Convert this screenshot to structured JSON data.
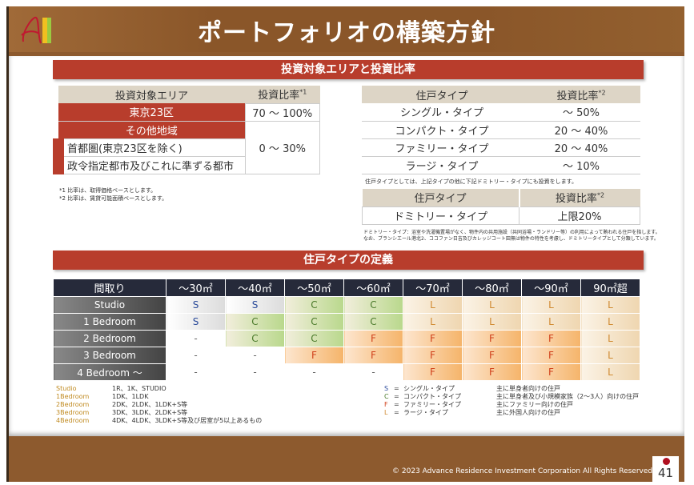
{
  "header": {
    "title": "ポートフォリオの構築方針",
    "logo_text": "A"
  },
  "section1": {
    "title": "投資対象エリアと投資比率"
  },
  "area_table": {
    "col_area": "投資対象エリア",
    "col_ratio": "投資比率",
    "col_ratio_note": "*1",
    "tokyo": "東京23区",
    "tokyo_ratio": "70 ～ 100%",
    "other": "その他地域",
    "metro": "首都圏(東京23区を除く)",
    "cities": "政令指定都市及びこれに準ずる都市",
    "other_ratio": "0 ～ 30%"
  },
  "footnotes": [
    "*1 比率は、取得価格ベースとします。",
    "*2 比率は、賃貸可能面積ベースとします。"
  ],
  "type_table": {
    "col_type": "住戸タイプ",
    "col_ratio": "投資比率",
    "col_ratio_note": "*2",
    "rows": [
      {
        "type": "シングル・タイプ",
        "ratio": "～ 50%"
      },
      {
        "type": "コンパクト・タイプ",
        "ratio": "20 ～ 40%"
      },
      {
        "type": "ファミリー・タイプ",
        "ratio": "20 ～ 40%"
      },
      {
        "type": "ラージ・タイプ",
        "ratio": "～ 10%"
      }
    ],
    "note": "住戸タイプとしては、上記タイプの他に下記ドミトリー・タイプにも投資をします。"
  },
  "dorm_table": {
    "col_type": "住戸タイプ",
    "col_ratio": "投資比率",
    "col_ratio_note": "*2",
    "type": "ドミトリー・タイプ",
    "ratio": "上限20%",
    "note1": "ドミトリー・タイプ：浴室や洗濯機置場がなく、物件内の共用施設（共同浴場・ランドリー等）の利用によって賄われる住戸を指します。",
    "note2": "なお、ブランシエール港北2、ココファン日吉及びカレッジコート田無は物件の特性を考慮し、ドミトリータイプとして分類しています。"
  },
  "section2": {
    "title": "住戸タイプの定義"
  },
  "grid": {
    "corner": "間取り",
    "columns": [
      "～30㎡",
      "～40㎡",
      "～50㎡",
      "～60㎡",
      "～70㎡",
      "～80㎡",
      "～90㎡",
      "90㎡超"
    ],
    "rows": [
      {
        "label": "Studio",
        "cells": [
          "S",
          "S",
          "C",
          "C",
          "L",
          "L",
          "L",
          "L"
        ]
      },
      {
        "label": "1 Bedroom",
        "cells": [
          "S",
          "C",
          "C",
          "C",
          "L",
          "L",
          "L",
          "L"
        ]
      },
      {
        "label": "2 Bedroom",
        "cells": [
          "-",
          "C",
          "C",
          "F",
          "F",
          "F",
          "F",
          "L"
        ]
      },
      {
        "label": "3 Bedroom",
        "cells": [
          "-",
          "-",
          "F",
          "F",
          "F",
          "F",
          "F",
          "L"
        ]
      },
      {
        "label": "4 Bedroom ～",
        "cells": [
          "-",
          "-",
          "-",
          "-",
          "F",
          "F",
          "F",
          "L"
        ]
      }
    ]
  },
  "legend_layouts": [
    {
      "name": "Studio",
      "desc": "1R、1K、STUDIO"
    },
    {
      "name": "1Bedroom",
      "desc": "1DK、1LDK"
    },
    {
      "name": "2Bedroom",
      "desc": "2DK、2LDK、1LDK+S等"
    },
    {
      "name": "3Bedroom",
      "desc": "3DK、3LDK、2LDK+S等"
    },
    {
      "name": "4Bedroom",
      "desc": "4DK、4LDK、3LDK+S等及び居室が5以上あるもの"
    }
  ],
  "legend_types": [
    {
      "code": "S",
      "eq": "=",
      "name": "シングル・タイプ",
      "desc": "主に単身者向けの住戸",
      "color": "#2a4a9a"
    },
    {
      "code": "C",
      "eq": "=",
      "name": "コンパクト・タイプ",
      "desc": "主に単身者及び小規模家族（2～3人）向けの住戸",
      "color": "#4a7a2a"
    },
    {
      "code": "F",
      "eq": "=",
      "name": "ファミリー・タイプ",
      "desc": "主にファミリー向けの住戸",
      "color": "#d0401a"
    },
    {
      "code": "L",
      "eq": "=",
      "name": "ラージ・タイプ",
      "desc": "主に外国人向けの住戸",
      "color": "#d08a30"
    }
  ],
  "footer": {
    "copyright": "© 2023 Advance Residence Investment Corporation All Rights Reserved",
    "page": "41"
  }
}
